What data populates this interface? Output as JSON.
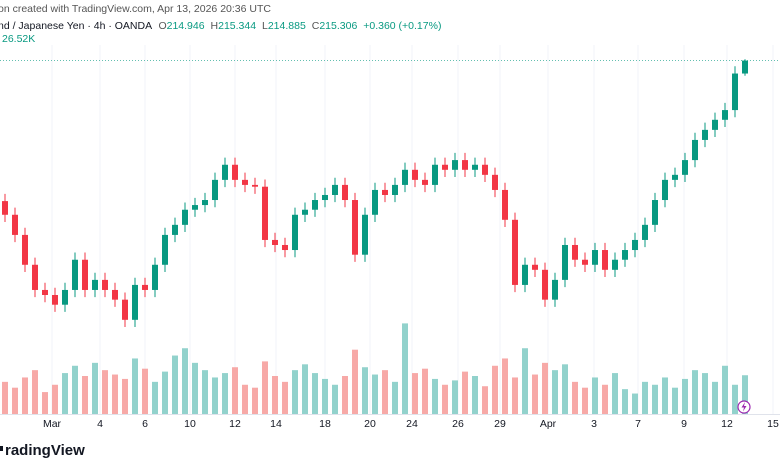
{
  "header": {
    "caption": "on created with TradingView.com, Apr 13, 2026 20:36 UTC",
    "symbol": "nd / Japanese Yen · 4h · OANDA",
    "open_label": "O",
    "open": "214.946",
    "high_label": "H",
    "high": "215.344",
    "low_label": "L",
    "low": "214.885",
    "close_label": "C",
    "close": "215.306",
    "change": "+0.360 (+0.17%)",
    "volume": "26.52K"
  },
  "footer": {
    "brand": "radingView"
  },
  "chart_data": {
    "type": "candlestick",
    "xlim": [
      -0.5,
      77.5
    ],
    "xticks": [
      {
        "value": 4.7,
        "label": "Mar"
      },
      {
        "value": 9.5,
        "label": "4"
      },
      {
        "value": 14,
        "label": "6"
      },
      {
        "value": 18.5,
        "label": "10"
      },
      {
        "value": 23,
        "label": "12"
      },
      {
        "value": 27.1,
        "label": "14"
      },
      {
        "value": 32,
        "label": "18"
      },
      {
        "value": 36.5,
        "label": "20"
      },
      {
        "value": 40.7,
        "label": "24"
      },
      {
        "value": 45.3,
        "label": "26"
      },
      {
        "value": 49.5,
        "label": "29"
      },
      {
        "value": 54.3,
        "label": "Apr"
      },
      {
        "value": 58.9,
        "label": "3"
      },
      {
        "value": 63.3,
        "label": "7"
      },
      {
        "value": 67.9,
        "label": "9"
      },
      {
        "value": 72.2,
        "label": "12"
      },
      {
        "value": 76.8,
        "label": "15"
      }
    ],
    "ylim": [
      207.4,
      215.6
    ],
    "open": [
      211.4,
      211.02,
      210.46,
      209.63,
      208.93,
      208.79,
      208.52,
      208.93,
      209.77,
      208.93,
      209.21,
      208.93,
      208.66,
      208.1,
      209.07,
      208.93,
      209.63,
      210.46,
      210.74,
      211.16,
      211.29,
      211.43,
      211.99,
      212.41,
      211.99,
      211.85,
      211.8,
      210.32,
      210.18,
      210.04,
      211.02,
      211.16,
      211.43,
      211.57,
      211.85,
      211.43,
      209.91,
      211.02,
      211.71,
      211.57,
      211.85,
      212.27,
      211.99,
      211.85,
      212.41,
      212.27,
      212.54,
      212.27,
      212.41,
      212.13,
      211.71,
      210.88,
      209.07,
      209.63,
      209.49,
      208.66,
      209.21,
      210.18,
      209.77,
      209.63,
      210.04,
      209.49,
      209.77,
      210.04,
      210.32,
      210.74,
      211.43,
      211.99,
      212.13,
      212.54,
      213.1,
      213.38,
      213.66,
      213.93,
      214.946
    ],
    "high": [
      211.6,
      211.22,
      210.66,
      209.83,
      209.13,
      208.99,
      209.13,
      209.97,
      209.97,
      209.41,
      209.41,
      209.13,
      208.86,
      209.27,
      209.27,
      209.83,
      210.66,
      210.94,
      211.36,
      211.49,
      211.63,
      212.19,
      212.61,
      212.61,
      212.19,
      212.05,
      212.0,
      210.52,
      210.38,
      211.22,
      211.36,
      211.63,
      211.77,
      212.05,
      212.05,
      211.63,
      211.22,
      211.91,
      211.91,
      212.05,
      212.47,
      212.47,
      212.19,
      212.61,
      212.61,
      212.74,
      212.74,
      212.61,
      212.61,
      212.33,
      211.91,
      211.08,
      209.83,
      209.83,
      209.69,
      209.41,
      210.38,
      210.38,
      209.97,
      210.24,
      210.24,
      209.97,
      210.24,
      210.52,
      210.94,
      211.63,
      212.19,
      212.33,
      212.74,
      213.3,
      213.58,
      213.86,
      214.13,
      215.15,
      215.344
    ],
    "low": [
      210.82,
      210.26,
      209.43,
      208.73,
      208.59,
      208.32,
      208.32,
      208.73,
      208.73,
      208.73,
      208.73,
      208.46,
      207.9,
      207.9,
      208.73,
      208.73,
      209.43,
      210.26,
      210.54,
      210.96,
      211.09,
      211.23,
      211.79,
      211.79,
      211.65,
      211.6,
      210.12,
      209.98,
      209.84,
      209.84,
      210.82,
      210.96,
      211.23,
      211.37,
      211.23,
      209.71,
      209.71,
      210.82,
      211.37,
      211.37,
      211.65,
      211.79,
      211.65,
      211.65,
      212.07,
      212.07,
      212.07,
      212.07,
      211.93,
      211.51,
      210.68,
      208.87,
      208.87,
      209.29,
      208.46,
      208.46,
      209.01,
      209.57,
      209.43,
      209.43,
      209.29,
      209.29,
      209.57,
      209.84,
      210.12,
      210.54,
      211.23,
      211.79,
      211.93,
      212.34,
      212.9,
      213.18,
      213.46,
      213.73,
      214.885
    ],
    "close": [
      211.02,
      210.46,
      209.63,
      208.93,
      208.79,
      208.52,
      208.93,
      209.77,
      208.93,
      209.21,
      208.93,
      208.66,
      208.1,
      209.07,
      208.93,
      209.63,
      210.46,
      210.74,
      211.16,
      211.29,
      211.43,
      211.99,
      212.41,
      211.99,
      211.85,
      211.8,
      210.32,
      210.18,
      210.04,
      211.02,
      211.16,
      211.43,
      211.57,
      211.85,
      211.43,
      209.91,
      211.02,
      211.71,
      211.57,
      211.85,
      212.27,
      211.99,
      211.85,
      212.41,
      212.27,
      212.54,
      212.27,
      212.41,
      212.13,
      211.71,
      210.88,
      209.07,
      209.63,
      209.49,
      208.66,
      209.21,
      210.18,
      209.77,
      209.63,
      210.04,
      209.49,
      209.77,
      210.04,
      210.32,
      210.74,
      211.43,
      211.99,
      212.13,
      212.54,
      213.1,
      213.38,
      213.66,
      213.93,
      214.946,
      215.306
    ],
    "up_color": "#089981",
    "down_color": "#f23645",
    "last_price_line": true,
    "grid": true,
    "volume": {
      "values": [
        22,
        18,
        25,
        30,
        15,
        20,
        28,
        33,
        26,
        35,
        30,
        27,
        24,
        38,
        31,
        22,
        29,
        40,
        45,
        35,
        30,
        25,
        28,
        32,
        20,
        18,
        36,
        26,
        22,
        30,
        34,
        28,
        24,
        20,
        26,
        44,
        32,
        27,
        30,
        22,
        62,
        28,
        31,
        24,
        20,
        23,
        29,
        26,
        19,
        33,
        38,
        25,
        45,
        27,
        35,
        30,
        34,
        22,
        18,
        25,
        20,
        28,
        17,
        14,
        22,
        20,
        25,
        18,
        24,
        30,
        28,
        22,
        33,
        20,
        26.52
      ],
      "ylim": [
        0,
        65
      ],
      "up_color": "#92d2cc",
      "down_color": "#f7a9a7"
    }
  }
}
